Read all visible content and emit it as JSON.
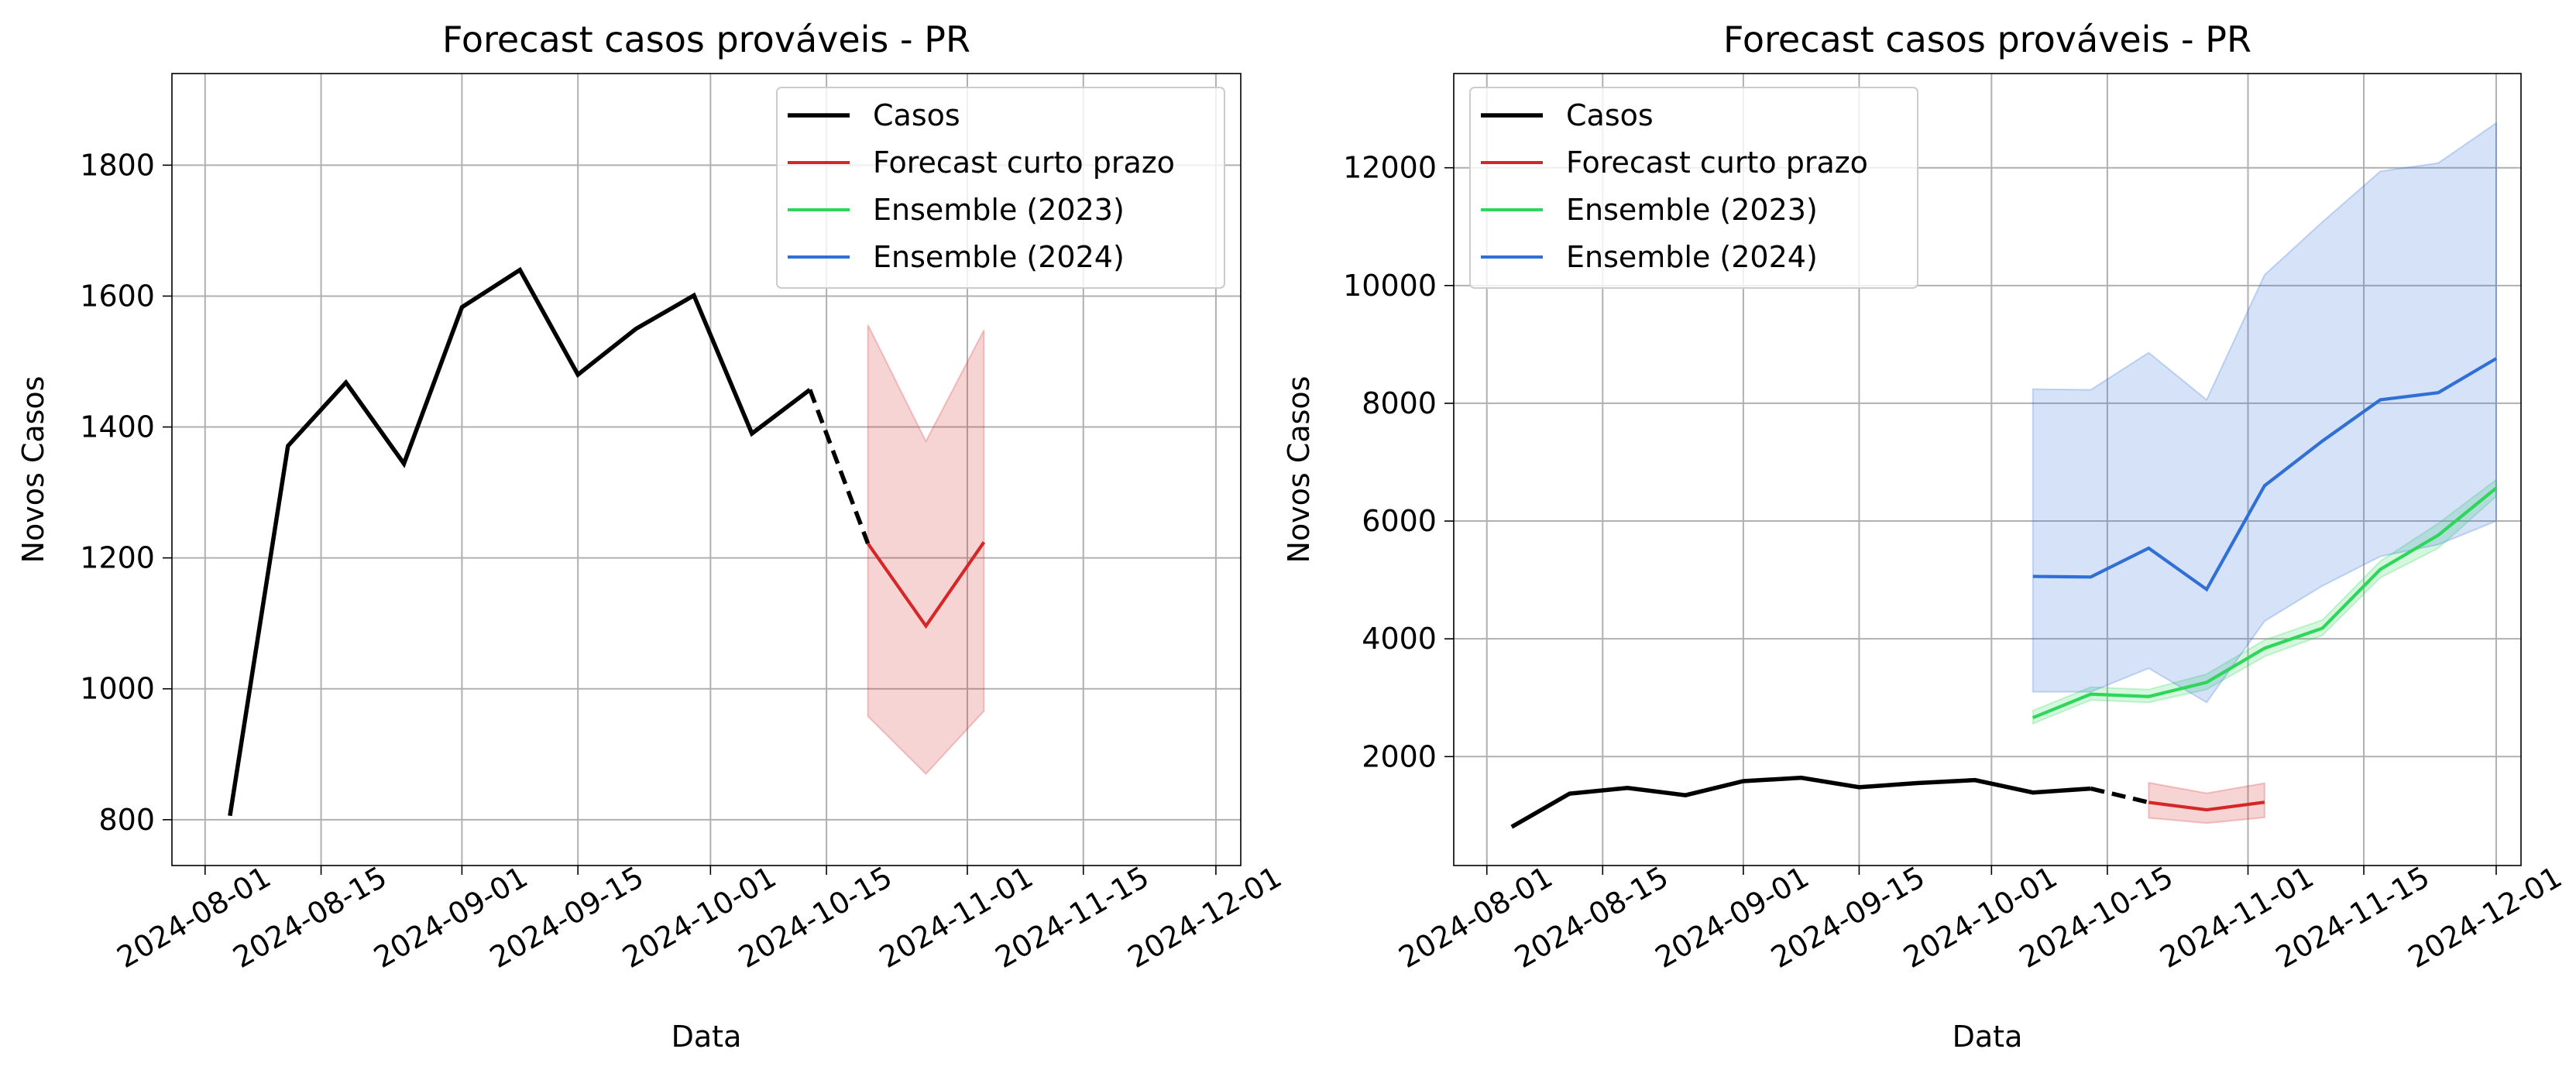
{
  "chart_data": [
    {
      "type": "line",
      "title": "Forecast casos prováveis - PR",
      "xlabel": "Data",
      "ylabel": "Novos Casos",
      "xlim": [
        "2024-07-28",
        "2024-12-04"
      ],
      "ylim": [
        730,
        1940
      ],
      "x_ticks": [
        "2024-08-01",
        "2024-08-15",
        "2024-09-01",
        "2024-09-15",
        "2024-10-01",
        "2024-10-15",
        "2024-11-01",
        "2024-11-15",
        "2024-12-01"
      ],
      "y_ticks": [
        800,
        1000,
        1200,
        1400,
        1600,
        1800
      ],
      "grid": true,
      "legend_position": "upper right",
      "legend": [
        "Casos",
        "Forecast curto prazo",
        "Ensemble (2023)",
        "Ensemble (2024)"
      ],
      "series": [
        {
          "name": "Casos",
          "color": "#000000",
          "x": [
            "2024-08-04",
            "2024-08-11",
            "2024-08-18",
            "2024-08-25",
            "2024-09-01",
            "2024-09-08",
            "2024-09-15",
            "2024-09-22",
            "2024-09-29",
            "2024-10-06",
            "2024-10-13"
          ],
          "y": [
            806,
            1371,
            1468,
            1344,
            1583,
            1640,
            1480,
            1550,
            1601,
            1390,
            1457
          ]
        },
        {
          "name": "Forecast curto prazo",
          "color": "#d62728",
          "x": [
            "2024-10-20",
            "2024-10-27",
            "2024-11-03"
          ],
          "y": [
            1222,
            1096,
            1224
          ],
          "lower": [
            958,
            870,
            966
          ],
          "upper": [
            1556,
            1378,
            1548
          ]
        }
      ],
      "connector": {
        "style": "dashed",
        "color": "#000000",
        "x": [
          "2024-10-13",
          "2024-10-20"
        ],
        "y": [
          1457,
          1222
        ]
      }
    },
    {
      "type": "line",
      "title": "Forecast casos prováveis - PR",
      "xlabel": "Data",
      "ylabel": "Novos Casos",
      "xlim": [
        "2024-07-28",
        "2024-12-04"
      ],
      "ylim": [
        150,
        13600
      ],
      "x_ticks": [
        "2024-08-01",
        "2024-08-15",
        "2024-09-01",
        "2024-09-15",
        "2024-10-01",
        "2024-10-15",
        "2024-11-01",
        "2024-11-15",
        "2024-12-01"
      ],
      "y_ticks": [
        2000,
        4000,
        6000,
        8000,
        10000,
        12000
      ],
      "grid": true,
      "legend_position": "upper left",
      "legend": [
        "Casos",
        "Forecast curto prazo",
        "Ensemble (2023)",
        "Ensemble (2024)"
      ],
      "series": [
        {
          "name": "Casos",
          "color": "#000000",
          "x": [
            "2024-08-04",
            "2024-08-11",
            "2024-08-18",
            "2024-08-25",
            "2024-09-01",
            "2024-09-08",
            "2024-09-15",
            "2024-09-22",
            "2024-09-29",
            "2024-10-06",
            "2024-10-13"
          ],
          "y": [
            806,
            1371,
            1468,
            1344,
            1583,
            1640,
            1480,
            1550,
            1601,
            1390,
            1457
          ]
        },
        {
          "name": "Forecast curto prazo",
          "color": "#d62728",
          "x": [
            "2024-10-20",
            "2024-10-27",
            "2024-11-03"
          ],
          "y": [
            1222,
            1096,
            1224
          ],
          "lower": [
            958,
            870,
            966
          ],
          "upper": [
            1556,
            1378,
            1548
          ]
        },
        {
          "name": "Ensemble (2023)",
          "color": "#2ed65a",
          "x": [
            "2024-10-06",
            "2024-10-13",
            "2024-10-20",
            "2024-10-27",
            "2024-11-03",
            "2024-11-10",
            "2024-11-17",
            "2024-11-24",
            "2024-12-01"
          ],
          "y": [
            2660,
            3060,
            3020,
            3260,
            3840,
            4180,
            5180,
            5760,
            6560
          ],
          "lower": [
            2560,
            2960,
            2920,
            3140,
            3700,
            4060,
            5040,
            5540,
            6420
          ],
          "upper": [
            2780,
            3180,
            3140,
            3400,
            3980,
            4320,
            5320,
            5960,
            6700
          ]
        },
        {
          "name": "Ensemble (2024)",
          "color": "#2f6fd6",
          "x": [
            "2024-10-06",
            "2024-10-13",
            "2024-10-20",
            "2024-10-27",
            "2024-11-03",
            "2024-11-10",
            "2024-11-17",
            "2024-11-24",
            "2024-12-01"
          ],
          "y": [
            5060,
            5050,
            5540,
            4840,
            6600,
            7360,
            8060,
            8180,
            8760
          ],
          "lower": [
            3100,
            3100,
            3500,
            2920,
            4300,
            4900,
            5400,
            5600,
            6000
          ],
          "upper": [
            8240,
            8230,
            8860,
            8060,
            10180,
            11080,
            11940,
            12080,
            12760
          ]
        }
      ],
      "connector": {
        "style": "dashed",
        "color": "#000000",
        "x": [
          "2024-10-13",
          "2024-10-20"
        ],
        "y": [
          1457,
          1222
        ]
      }
    }
  ]
}
